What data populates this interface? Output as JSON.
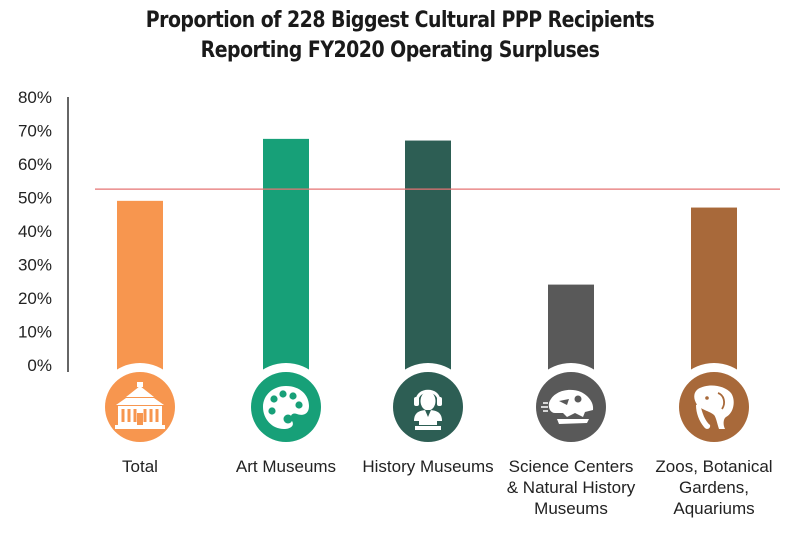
{
  "chart_data": {
    "type": "bar",
    "title_lines": [
      "Proportion of 228 Biggest Cultural PPP Recipients",
      "Reporting FY2020 Operating Surpluses"
    ],
    "categories": [
      "Total",
      "Art Museums",
      "History Museums",
      "Science Centers & Natural History Museums",
      "Zoos, Botanical Gardens, Aquariums"
    ],
    "category_label_lines": [
      [
        "Total"
      ],
      [
        "Art Museums"
      ],
      [
        "History Museums"
      ],
      [
        "Science Centers",
        "& Natural History",
        "Museums"
      ],
      [
        "Zoos, Botanical",
        "Gardens,",
        "Aquariums"
      ]
    ],
    "values": [
      49,
      67.5,
      67,
      24,
      47
    ],
    "colors": [
      "#f7964f",
      "#17a078",
      "#2d5e54",
      "#595959",
      "#a8693a"
    ],
    "icons": [
      "building-icon",
      "palette-icon",
      "bust-icon",
      "dinosaur-skull-icon",
      "elephant-icon"
    ],
    "y_ticks": [
      "0%",
      "10%",
      "20%",
      "30%",
      "40%",
      "50%",
      "60%",
      "70%",
      "80%"
    ],
    "ylim": [
      0,
      80
    ],
    "reference_line": 52.5,
    "reference_line_color": "#e57373",
    "grid": false,
    "xlabel": "",
    "ylabel": ""
  }
}
